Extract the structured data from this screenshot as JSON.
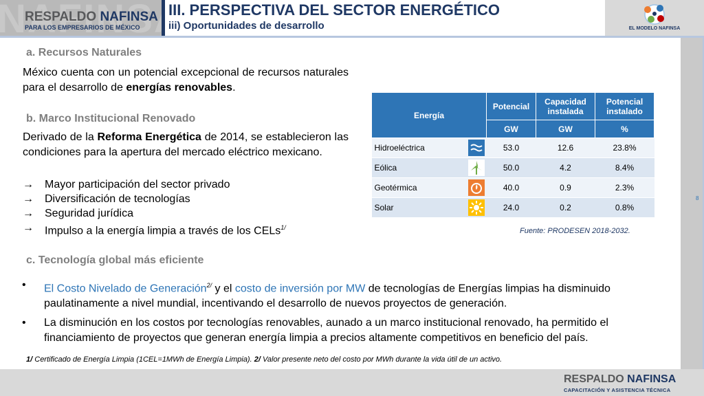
{
  "header": {
    "logo_brand_a": "RESPALDO ",
    "logo_brand_b": "NAFINSA",
    "logo_tagline": "PARA LOS EMPRESARIOS DE MÉXICO",
    "watermark": "NAFINSA",
    "title": "III. PERSPECTIVA DEL SECTOR ENERGÉTICO",
    "subtitle": "iii) Oportunidades de desarrollo",
    "modelo_label": "EL MODELO NAFINSA"
  },
  "page_number": "8",
  "sections": {
    "a_heading": "a. Recursos Naturales",
    "a_text_1": "México cuenta con un potencial excepcional de recursos naturales para el desarrollo de ",
    "a_text_bold": "energías renovables",
    "a_text_2": ".",
    "b_heading": "b. Marco Institucional Renovado",
    "b_text_1": "Derivado de la ",
    "b_text_bold": "Reforma Energética",
    "b_text_2": " de 2014, se establecieron las condiciones para la apertura del mercado eléctrico mexicano.",
    "arrow": "→",
    "b_items": [
      "Mayor participación del sector privado",
      "Diversificación de tecnologías",
      "Seguridad jurídica",
      "Impulso a la energía limpia a través de los CELs"
    ],
    "b_item4_sup": "1/",
    "c_heading": "c. Tecnología global más eficiente"
  },
  "table": {
    "headers": [
      "Energía",
      "Potencial",
      "Capacidad instalada",
      "Potencial instalado"
    ],
    "units": [
      "GW",
      "GW",
      "%"
    ],
    "rows": [
      {
        "name": "Hidroeléctrica",
        "icon": "water-waves-icon",
        "potencial": "53.0",
        "capacidad": "12.6",
        "pct": "23.8%"
      },
      {
        "name": "Eólica",
        "icon": "wind-turbine-icon",
        "potencial": "50.0",
        "capacidad": "4.2",
        "pct": "8.4%"
      },
      {
        "name": "Geotérmica",
        "icon": "geothermal-flame-icon",
        "potencial": "40.0",
        "capacidad": "0.9",
        "pct": "2.3%"
      },
      {
        "name": "Solar",
        "icon": "sun-icon",
        "potencial": "24.0",
        "capacidad": "0.2",
        "pct": "0.8%"
      }
    ],
    "source": "Fuente: PRODESEN 2018-2032.",
    "icon_colors": {
      "hydro": "#2e75b6",
      "wind": "#70ad47",
      "geo": "#ed7d31",
      "solar": "#ffc000"
    }
  },
  "bullets": {
    "marker": "•",
    "b1_blue1": "El Costo Nivelado de Generación",
    "b1_sup": "2/",
    "b1_mid": " y el ",
    "b1_blue2": "costo de inversión por MW",
    "b1_rest": " de tecnologías de Energías limpias ha disminuido paulatinamente a nivel mundial, incentivando el desarrollo de nuevos proyectos de generación.",
    "b2": "La disminución en los costos por tecnologías renovables, aunado a un marco institucional renovado, ha permitido el financiamiento de proyectos que generan energía limpia a precios altamente competitivos en beneficio del país."
  },
  "footnote": {
    "n1": "1/",
    "t1": " Certificado de Energía Limpia (1CEL=1MWh de Energía Limpia). ",
    "n2": "2/",
    "t2": " Valor presente neto del costo por MWh durante la vida útil de un activo."
  },
  "footer": {
    "brand_a": "RESPALDO ",
    "brand_b": "NAFINSA",
    "tagline": "CAPACITACIÓN Y ASISTENCIA TÉCNICA"
  }
}
